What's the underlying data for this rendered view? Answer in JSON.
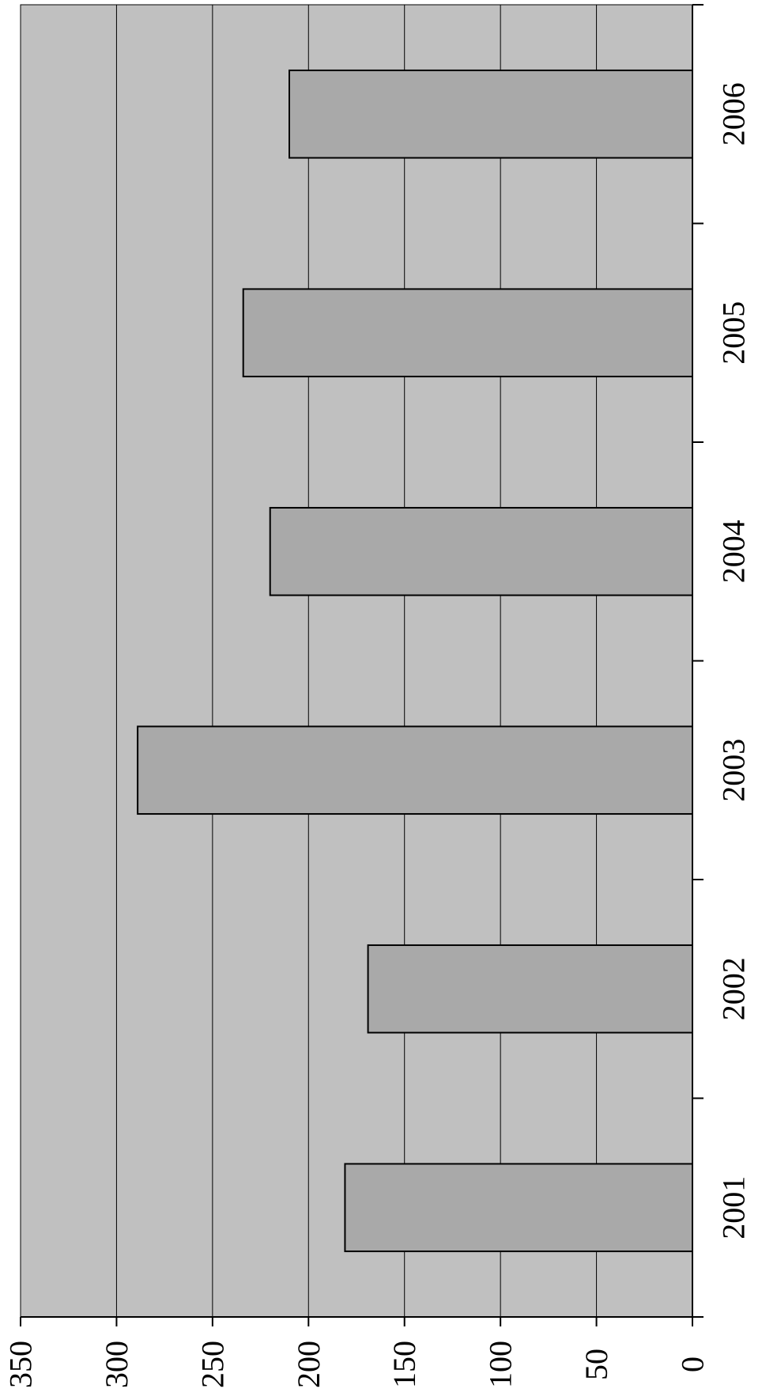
{
  "colors": {
    "plot_background": "#c0c0c0",
    "bar_fill": "#a9a9a9",
    "bar_stroke": "#000000",
    "gridline": "#000000"
  },
  "chart_data": {
    "type": "bar",
    "orientation": "rotated-90-clockwise",
    "title": "",
    "xlabel": "",
    "ylabel": "",
    "categories": [
      "2001",
      "2002",
      "2003",
      "2004",
      "2005",
      "2006"
    ],
    "series": [
      {
        "values": [
          181,
          169,
          289,
          220,
          234,
          210
        ]
      }
    ],
    "ylim": [
      0,
      350
    ],
    "yticks": [
      "0",
      "50",
      "100",
      "150",
      "200",
      "250",
      "300",
      "350"
    ],
    "grid": true,
    "legend": "none"
  }
}
